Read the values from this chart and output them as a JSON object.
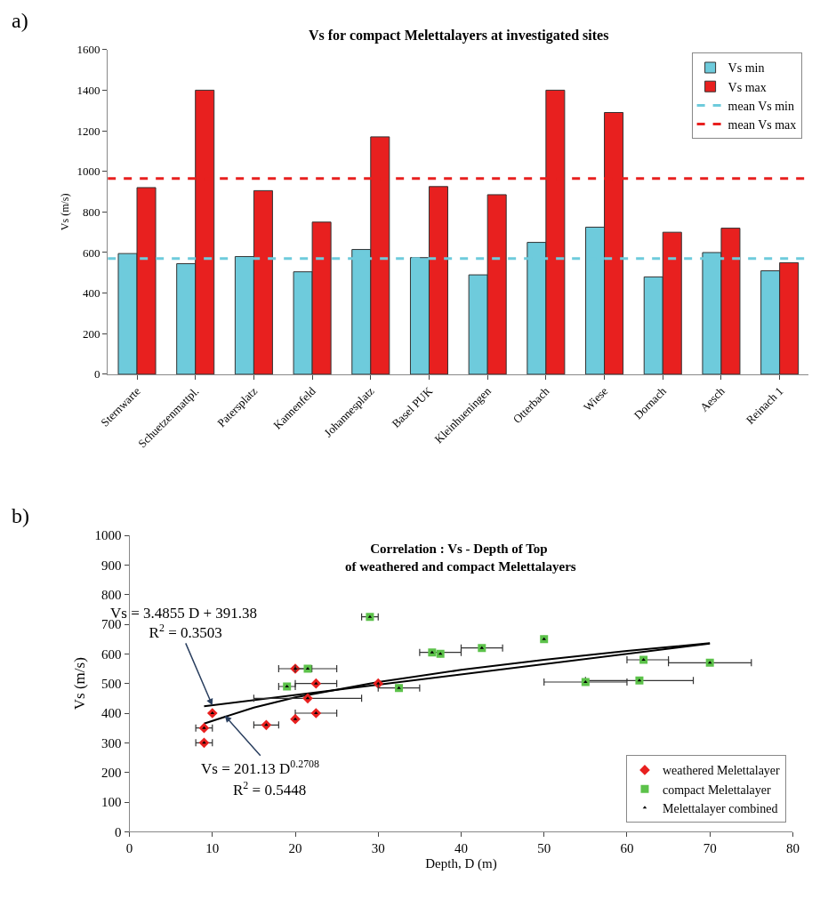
{
  "chart_data": [
    {
      "type": "bar",
      "title": "Vs for compact Melettalayers at investigated sites",
      "ylabel": "Vs (m/s)",
      "annotations": [
        "a)"
      ],
      "categories": [
        "Sternwarte",
        "Schuetzenmattpl.",
        "Patersplatz",
        "Kannenfeld",
        "Johannesplatz",
        "Basel PUK",
        "Kleinhueningen",
        "Otterbach",
        "Wiese",
        "Dornach",
        "Aesch",
        "Reinach 1"
      ],
      "series": [
        {
          "name": "Vs min",
          "color": "#6ecbdc",
          "values": [
            595,
            545,
            580,
            505,
            615,
            575,
            490,
            650,
            725,
            480,
            600,
            510
          ]
        },
        {
          "name": "Vs max",
          "color": "#e8201f",
          "values": [
            920,
            1400,
            905,
            750,
            1170,
            925,
            885,
            1400,
            1290,
            700,
            720,
            550
          ]
        }
      ],
      "ref_lines": [
        {
          "axis": "y",
          "value": 570,
          "label": "mean Vs min",
          "color": "#6ecbdc",
          "line_style": "dashed"
        },
        {
          "axis": "y",
          "value": 965,
          "label": "mean Vs max",
          "color": "#e8201f",
          "line_style": "dashed"
        }
      ],
      "ylim": [
        0,
        1600
      ],
      "yticks": [
        0,
        200,
        400,
        600,
        800,
        1000,
        1200,
        1400,
        1600
      ],
      "legend": "top right"
    },
    {
      "type": "scatter",
      "title": "Correlation : Vs - Depth of Top\nof weathered and compact Melettalayers",
      "xlabel": "Depth, D (m)",
      "ylabel": "Vs (m/s)",
      "annotations": [
        "b)",
        {
          "text": "Vs = 3.4855 D + 391.38\nR$^{2}$ = 0.3503",
          "x": 10,
          "y": 426
        },
        {
          "text": "Vs = 201.13 D$^{0.2708}$",
          "x": 11.5,
          "y": 392
        },
        "R$^{2}$ = 0.5448"
      ],
      "series": [
        {
          "name": "weathered Melettalayer",
          "color": "#e8201f",
          "marker": "diamond",
          "x": [
            9,
            9,
            10,
            16.5,
            20,
            22.5,
            21.5,
            22.5,
            20,
            30
          ],
          "values": [
            300,
            350,
            400,
            360,
            380,
            400,
            450,
            500,
            550,
            500
          ],
          "xerrors": [
            [
              8,
              10
            ],
            [
              8,
              10
            ],
            null,
            [
              15,
              18
            ],
            null,
            [
              20,
              25
            ],
            [
              15,
              28
            ],
            [
              20,
              25
            ],
            [
              18,
              22
            ],
            null
          ]
        },
        {
          "name": "compact Melettalayer",
          "color": "#5cc24a",
          "marker": "square",
          "x": [
            21.5,
            19,
            29,
            32.5,
            36.5,
            37.5,
            42.5,
            50,
            62,
            70,
            55,
            61.5
          ],
          "values": [
            550,
            490,
            725,
            485,
            605,
            600,
            620,
            650,
            580,
            570,
            505,
            510
          ],
          "xerrors": [
            [
              20,
              25
            ],
            [
              18,
              20
            ],
            [
              28,
              30
            ],
            [
              30,
              35
            ],
            [
              35,
              40
            ],
            null,
            [
              40,
              45
            ],
            null,
            [
              60,
              65
            ],
            [
              65,
              75
            ],
            [
              50,
              60
            ],
            [
              55,
              68
            ]
          ]
        },
        {
          "name": "Melettalayer combined",
          "color": "#000000",
          "marker": "triangle",
          "x": [
            9,
            9,
            10,
            16.5,
            20,
            22.5,
            21.5,
            22.5,
            20,
            30,
            21.5,
            19,
            29,
            32.5,
            36.5,
            37.5,
            42.5,
            50,
            62,
            70,
            55,
            61.5
          ],
          "values": [
            300,
            350,
            400,
            360,
            380,
            400,
            450,
            500,
            550,
            500,
            550,
            490,
            725,
            485,
            605,
            600,
            620,
            650,
            580,
            570,
            505,
            510
          ]
        },
        {
          "type": "line",
          "color": "#000000",
          "marker": "none",
          "x": [
            9,
            70
          ],
          "values": [
            423,
            635
          ]
        },
        {
          "type": "line",
          "color": "#000000",
          "marker": "none",
          "x": [
            9,
            15,
            20,
            30,
            40,
            50,
            60,
            70
          ],
          "values": [
            365,
            419,
            453,
            505,
            546,
            580,
            610,
            636
          ]
        }
      ],
      "xlim": [
        0,
        80
      ],
      "xticks": [
        0,
        10,
        20,
        30,
        40,
        50,
        60,
        70,
        80
      ],
      "ylim": [
        0,
        1000
      ],
      "yticks": [
        0,
        100,
        200,
        300,
        400,
        500,
        600,
        700,
        800,
        900,
        1000
      ],
      "legend": "bottom right"
    }
  ]
}
